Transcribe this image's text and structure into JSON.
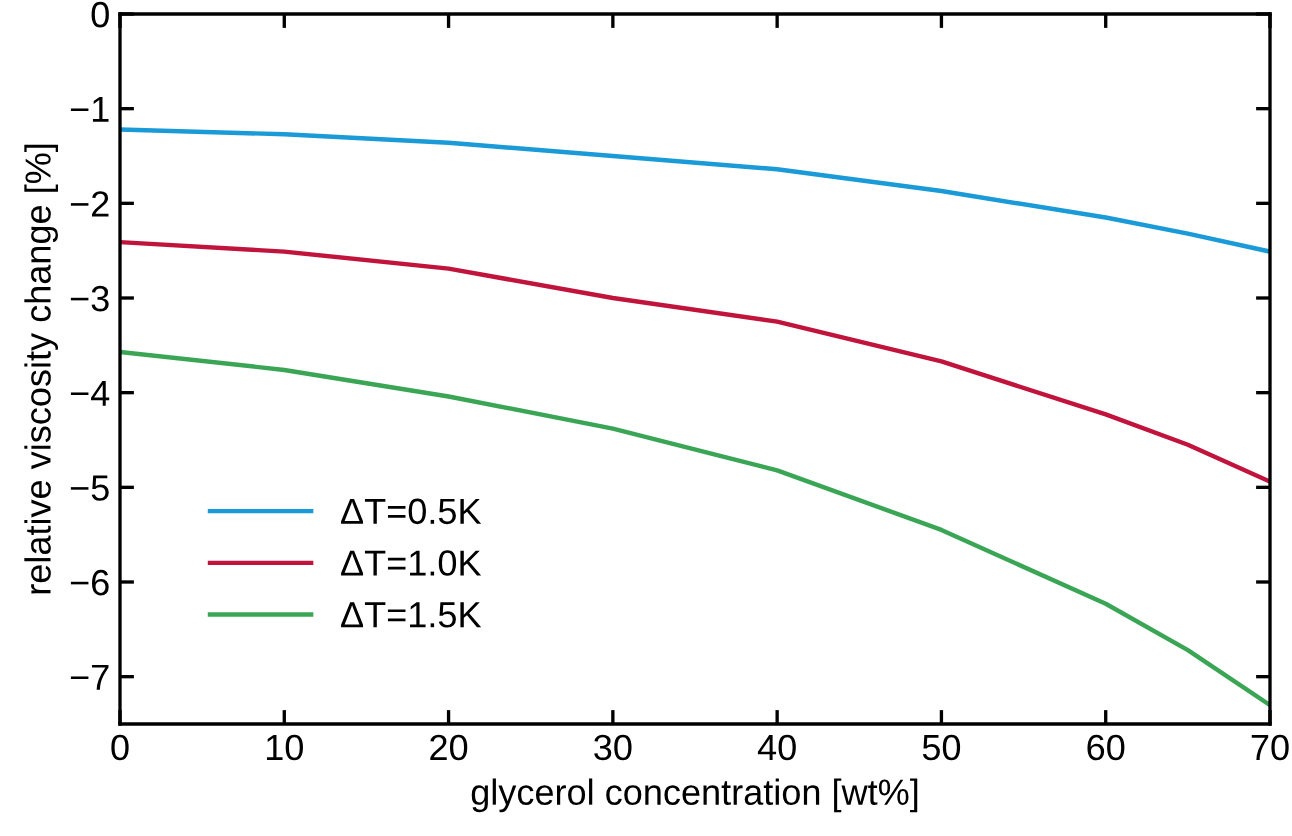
{
  "chart_data": {
    "type": "line",
    "xlabel": "glycerol concentration [wt%]",
    "ylabel": "relative viscosity change [%]",
    "x": [
      0,
      10,
      20,
      30,
      40,
      50,
      60,
      65,
      70
    ],
    "series": [
      {
        "name": "ΔT=0.5K",
        "color": "#1a9ad6",
        "values": [
          -1.22,
          -1.27,
          -1.36,
          -1.5,
          -1.64,
          -1.87,
          -2.15,
          -2.32,
          -2.51
        ]
      },
      {
        "name": "ΔT=1.0K",
        "color": "#c0143c",
        "values": [
          -2.41,
          -2.51,
          -2.69,
          -3.0,
          -3.25,
          -3.67,
          -4.23,
          -4.55,
          -4.94
        ]
      },
      {
        "name": "ΔT=1.5K",
        "color": "#3aa655",
        "values": [
          -3.57,
          -3.76,
          -4.04,
          -4.38,
          -4.82,
          -5.45,
          -6.23,
          -6.72,
          -7.3
        ]
      }
    ],
    "xlim": [
      0,
      70
    ],
    "xticks": [
      0,
      10,
      20,
      30,
      40,
      50,
      60,
      70
    ],
    "ylim": [
      -7.5,
      0
    ],
    "yticks": [
      -7,
      -6,
      -5,
      -4,
      -3,
      -2,
      -1,
      0
    ],
    "grid": false,
    "legend": "bottom left",
    "marker": "none",
    "line_style": "solid"
  }
}
